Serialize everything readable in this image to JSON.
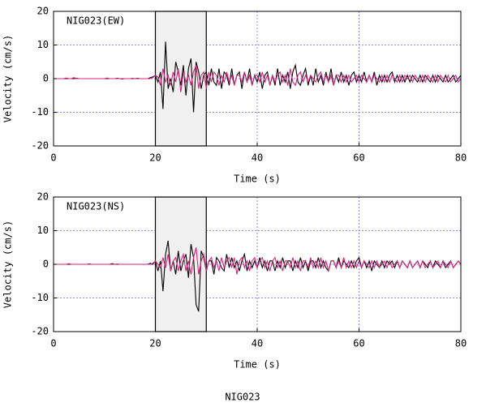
{
  "caption": "NIG023",
  "chart_data": [
    {
      "type": "line",
      "title": "NIG023(EW)",
      "xlabel": "Time (s)",
      "ylabel": "Velocity (cm/s)",
      "xlim": [
        0,
        80
      ],
      "ylim": [
        -20,
        20
      ],
      "xticks": [
        0,
        20,
        40,
        60,
        80
      ],
      "yticks": [
        -20,
        -10,
        0,
        10,
        20
      ],
      "grid": true,
      "highlight_xlim": [
        20,
        30
      ],
      "x": [
        0,
        0.5,
        1,
        1.5,
        2,
        2.5,
        3,
        3.5,
        4,
        4.5,
        5,
        5.5,
        6,
        6.5,
        7,
        7.5,
        8,
        8.5,
        9,
        9.5,
        10,
        10.5,
        11,
        11.5,
        12,
        12.5,
        13,
        13.5,
        14,
        14.5,
        15,
        15.5,
        16,
        16.5,
        17,
        17.5,
        18,
        18.5,
        19,
        19.5,
        20,
        20.5,
        21,
        21.5,
        22,
        22.5,
        23,
        23.5,
        24,
        24.5,
        25,
        25.5,
        26,
        26.5,
        27,
        27.5,
        28,
        28.5,
        29,
        29.5,
        30,
        30.5,
        31,
        31.5,
        32,
        32.5,
        33,
        33.5,
        34,
        34.5,
        35,
        35.5,
        36,
        36.5,
        37,
        37.5,
        38,
        38.5,
        39,
        39.5,
        40,
        40.5,
        41,
        41.5,
        42,
        42.5,
        43,
        43.5,
        44,
        44.5,
        45,
        45.5,
        46,
        46.5,
        47,
        47.5,
        48,
        48.5,
        49,
        49.5,
        50,
        50.5,
        51,
        51.5,
        52,
        52.5,
        53,
        53.5,
        54,
        54.5,
        55,
        55.5,
        56,
        56.5,
        57,
        57.5,
        58,
        58.5,
        59,
        59.5,
        60,
        60.5,
        61,
        61.5,
        62,
        62.5,
        63,
        63.5,
        64,
        64.5,
        65,
        65.5,
        66,
        66.5,
        67,
        67.5,
        68,
        68.5,
        69,
        69.5,
        70,
        70.5,
        71,
        71.5,
        72,
        72.5,
        73,
        73.5,
        74,
        74.5,
        75,
        75.5,
        76,
        76.5,
        77,
        77.5,
        78,
        78.5,
        79,
        79.5,
        80
      ],
      "series": [
        {
          "color": "#000000",
          "values": [
            0,
            0,
            0,
            0,
            0,
            0,
            0,
            0,
            0,
            0.1,
            0,
            0,
            0,
            0,
            0,
            0,
            0,
            0,
            0,
            0,
            0,
            0,
            0,
            0,
            0,
            0.1,
            0,
            -0.1,
            0,
            0,
            0,
            0,
            0,
            0.1,
            0,
            0,
            0,
            0,
            0.3,
            0.5,
            1,
            -1,
            2,
            -9,
            11,
            -3,
            0,
            -4,
            5,
            2,
            -2,
            4,
            -5,
            3,
            6,
            -10,
            5,
            2,
            -3,
            1,
            2,
            -2,
            3,
            -1,
            -2,
            3,
            -3,
            2,
            1,
            -2,
            3,
            -2,
            1,
            2,
            -3,
            2,
            -1,
            3,
            -2,
            1,
            -1,
            2,
            -3,
            1,
            2,
            -2,
            1,
            -2,
            3,
            -2,
            1,
            -1,
            2,
            -3,
            2,
            4,
            -1,
            -2,
            1,
            3,
            -2,
            1,
            -2,
            3,
            -1,
            1,
            -2,
            2,
            -1,
            3,
            -2,
            1,
            -1,
            2,
            -1,
            1,
            -2,
            1,
            2,
            -1,
            1,
            -1,
            2,
            -1,
            1,
            -1,
            2,
            -2,
            1,
            -1,
            1,
            -1,
            1,
            2,
            -1,
            1,
            -1,
            1,
            -1,
            1,
            -1,
            1,
            0,
            -1,
            1,
            -1,
            1,
            0,
            -1,
            1,
            -1,
            1,
            0,
            -1,
            1,
            -1,
            0,
            1,
            -1,
            0,
            1
          ]
        },
        {
          "color": "#e0207a",
          "values": [
            0,
            0,
            0,
            0,
            0,
            0.2,
            0,
            0,
            0.3,
            0,
            0,
            0,
            0,
            0,
            0,
            0,
            0,
            0,
            0,
            0,
            0,
            0.2,
            0,
            0,
            0,
            0,
            0,
            0,
            0,
            0,
            0,
            0.1,
            0,
            0,
            0,
            0,
            0,
            0,
            0,
            0.3,
            1,
            0.5,
            -2,
            3,
            -1,
            1,
            -2,
            2,
            -1,
            3,
            -4,
            2,
            -1,
            1,
            -2,
            2,
            4,
            -3,
            1,
            2,
            -3,
            2,
            -1,
            2,
            1,
            -2,
            1,
            -1,
            2,
            -1,
            1,
            -2,
            1,
            1,
            -1,
            2,
            -1,
            1,
            -2,
            1,
            1,
            -1,
            2,
            -1,
            1,
            -2,
            1,
            -1,
            1,
            2,
            -1,
            1,
            -2,
            3,
            -1,
            -2,
            1,
            2,
            -1,
            1,
            -1,
            1,
            0,
            -1,
            1,
            2,
            -1,
            1,
            -1,
            1,
            -2,
            1,
            1,
            -1,
            1,
            -1,
            1,
            -1,
            0,
            1,
            -1,
            1,
            0,
            -1,
            1,
            -1,
            1,
            0,
            -1,
            1,
            -1,
            1,
            -1,
            1,
            0,
            -1,
            1,
            -1,
            1,
            0,
            1,
            -1,
            1,
            0,
            -1,
            1,
            -1,
            1,
            0,
            -1,
            1,
            -1,
            1,
            0,
            -1,
            1,
            -1,
            0,
            1,
            -1,
            0
          ]
        }
      ]
    },
    {
      "type": "line",
      "title": "NIG023(NS)",
      "xlabel": "Time (s)",
      "ylabel": "Velocity (cm/s)",
      "xlim": [
        0,
        80
      ],
      "ylim": [
        -20,
        20
      ],
      "xticks": [
        0,
        20,
        40,
        60,
        80
      ],
      "yticks": [
        -20,
        -10,
        0,
        10,
        20
      ],
      "grid": true,
      "highlight_xlim": [
        20,
        30
      ],
      "x": [
        0,
        0.5,
        1,
        1.5,
        2,
        2.5,
        3,
        3.5,
        4,
        4.5,
        5,
        5.5,
        6,
        6.5,
        7,
        7.5,
        8,
        8.5,
        9,
        9.5,
        10,
        10.5,
        11,
        11.5,
        12,
        12.5,
        13,
        13.5,
        14,
        14.5,
        15,
        15.5,
        16,
        16.5,
        17,
        17.5,
        18,
        18.5,
        19,
        19.5,
        20,
        20.5,
        21,
        21.5,
        22,
        22.5,
        23,
        23.5,
        24,
        24.5,
        25,
        25.5,
        26,
        26.5,
        27,
        27.5,
        28,
        28.5,
        29,
        29.5,
        30,
        30.5,
        31,
        31.5,
        32,
        32.5,
        33,
        33.5,
        34,
        34.5,
        35,
        35.5,
        36,
        36.5,
        37,
        37.5,
        38,
        38.5,
        39,
        39.5,
        40,
        40.5,
        41,
        41.5,
        42,
        42.5,
        43,
        43.5,
        44,
        44.5,
        45,
        45.5,
        46,
        46.5,
        47,
        47.5,
        48,
        48.5,
        49,
        49.5,
        50,
        50.5,
        51,
        51.5,
        52,
        52.5,
        53,
        53.5,
        54,
        54.5,
        55,
        55.5,
        56,
        56.5,
        57,
        57.5,
        58,
        58.5,
        59,
        59.5,
        60,
        60.5,
        61,
        61.5,
        62,
        62.5,
        63,
        63.5,
        64,
        64.5,
        65,
        65.5,
        66,
        66.5,
        67,
        67.5,
        68,
        68.5,
        69,
        69.5,
        70,
        70.5,
        71,
        71.5,
        72,
        72.5,
        73,
        73.5,
        74,
        74.5,
        75,
        75.5,
        76,
        76.5,
        77,
        77.5,
        78,
        78.5,
        79,
        79.5,
        80
      ],
      "series": [
        {
          "color": "#000000",
          "values": [
            0,
            0,
            0,
            0,
            0,
            0,
            0,
            0,
            0,
            0,
            0,
            0,
            0,
            0,
            0.1,
            0,
            0,
            0,
            0,
            0,
            0,
            0,
            0,
            0.2,
            0,
            0,
            0,
            0,
            0,
            0,
            0,
            0,
            0,
            0,
            0,
            0,
            0,
            0,
            0.3,
            0,
            1,
            -2,
            1,
            -8,
            3,
            7,
            -2,
            1,
            -3,
            4,
            -2,
            1,
            3,
            -4,
            6,
            2,
            -12,
            -14,
            4,
            2,
            -2,
            1,
            1,
            -3,
            2,
            1,
            -1,
            -2,
            3,
            -1,
            2,
            -1,
            1,
            -2,
            1,
            3,
            -2,
            1,
            -1,
            1,
            -1,
            2,
            -1,
            1,
            -2,
            1,
            1,
            -2,
            1,
            -1,
            2,
            -1,
            1,
            1,
            -2,
            1,
            -1,
            2,
            -1,
            1,
            -2,
            1,
            1,
            -1,
            2,
            -1,
            1,
            -1,
            -2,
            1,
            1,
            -1,
            2,
            -1,
            1,
            0,
            -1,
            1,
            -1,
            1,
            2,
            -1,
            1,
            -1,
            1,
            -2,
            1,
            0,
            -1,
            1,
            -1,
            1,
            0,
            1,
            -1,
            1,
            -1,
            1,
            0,
            -1,
            1,
            -1,
            0,
            1,
            -1,
            1,
            0,
            -1,
            1,
            -1,
            1,
            0,
            -1,
            1,
            -1,
            0,
            1,
            -1,
            0,
            1,
            0
          ]
        },
        {
          "color": "#e0207a",
          "values": [
            0,
            0,
            0,
            0,
            0,
            0,
            0.2,
            0,
            0,
            0,
            0,
            0,
            0,
            0,
            0,
            0,
            0,
            0,
            0,
            0,
            0,
            0,
            0,
            0,
            0,
            0.1,
            0,
            0,
            0,
            0,
            0,
            0,
            0,
            0,
            0,
            0,
            0,
            0,
            0,
            0.3,
            1,
            0,
            -1,
            2,
            -1,
            3,
            -2,
            1,
            2,
            -2,
            1,
            3,
            -2,
            1,
            -3,
            2,
            5,
            -3,
            1,
            3,
            -2,
            1,
            2,
            -1,
            1,
            -2,
            2,
            -1,
            1,
            2,
            -1,
            2,
            -3,
            1,
            2,
            -1,
            1,
            -2,
            1,
            2,
            -1,
            1,
            2,
            -1,
            1,
            -2,
            1,
            2,
            -1,
            1,
            -2,
            1,
            1,
            -1,
            2,
            -1,
            1,
            -2,
            1,
            1,
            -1,
            2,
            -1,
            1,
            -1,
            2,
            -1,
            1,
            -2,
            1,
            1,
            -1,
            1,
            -1,
            2,
            -1,
            1,
            -1,
            1,
            -1,
            1,
            -1,
            1,
            0,
            -1,
            1,
            -1,
            1,
            -1,
            0,
            1,
            -1,
            1,
            -1,
            0,
            1,
            -1,
            1,
            0,
            -1,
            1,
            -1,
            0,
            1,
            -1,
            1,
            -1,
            0,
            1,
            -1,
            0,
            1,
            -1,
            1,
            0,
            -1,
            1,
            -1,
            0,
            1,
            0
          ]
        }
      ]
    }
  ]
}
